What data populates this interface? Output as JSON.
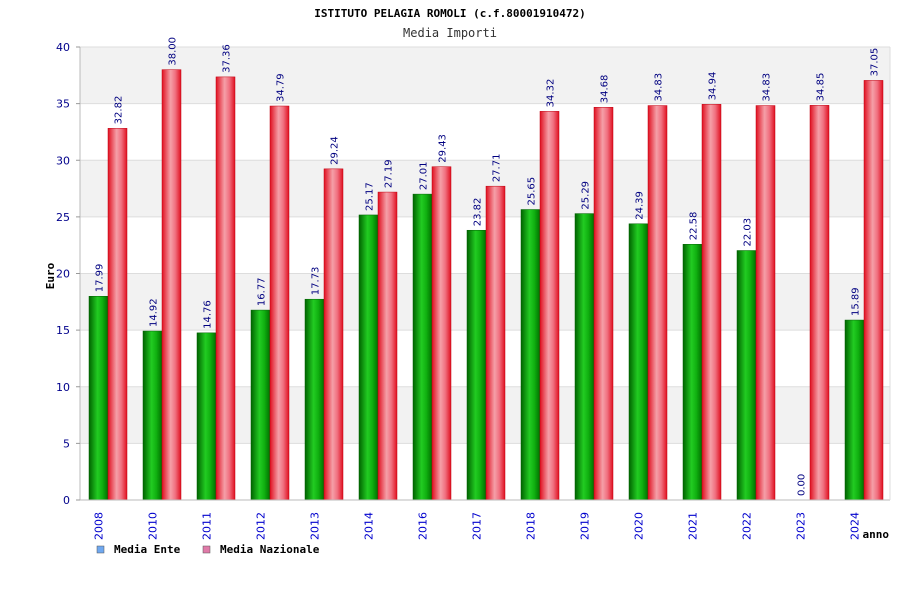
{
  "chart_data": {
    "type": "bar",
    "title": "ISTITUTO PELAGIA ROMOLI (c.f.80001910472)",
    "subtitle": "Media Importi",
    "xlabel": "anno",
    "ylabel": "Euro",
    "ylim": [
      0,
      40
    ],
    "yticks": [
      "0",
      "5",
      "10",
      "15",
      "20",
      "25",
      "30",
      "35",
      "40"
    ],
    "grid": true,
    "legend_position": "bottom-left",
    "categories": [
      "2008",
      "2010",
      "2011",
      "2012",
      "2013",
      "2014",
      "2016",
      "2017",
      "2018",
      "2019",
      "2020",
      "2021",
      "2022",
      "2023",
      "2024"
    ],
    "series": [
      {
        "name": "Media Ente",
        "color": "#00b000",
        "legend_color": "#6fa8f0",
        "values": [
          17.99,
          14.92,
          14.76,
          16.77,
          17.73,
          25.17,
          27.01,
          23.82,
          25.65,
          25.29,
          24.39,
          22.58,
          22.03,
          0.0,
          15.89
        ],
        "labels": [
          "17.99",
          "14.92",
          "14.76",
          "16.77",
          "17.73",
          "25.17",
          "27.01",
          "23.82",
          "25.65",
          "25.29",
          "24.39",
          "22.58",
          "22.03",
          "0.00",
          "15.89"
        ]
      },
      {
        "name": "Media Nazionale",
        "color": "#e8202a",
        "legend_color": "#e07aa8",
        "values": [
          32.82,
          38.0,
          37.36,
          34.79,
          29.24,
          27.19,
          29.43,
          27.71,
          34.32,
          34.68,
          34.83,
          34.94,
          34.83,
          34.85,
          37.05
        ],
        "labels": [
          "32.82",
          "38.00",
          "37.36",
          "34.79",
          "29.24",
          "27.19",
          "29.43",
          "27.71",
          "34.32",
          "34.68",
          "34.83",
          "34.94",
          "34.83",
          "34.85",
          "37.05"
        ]
      }
    ]
  }
}
